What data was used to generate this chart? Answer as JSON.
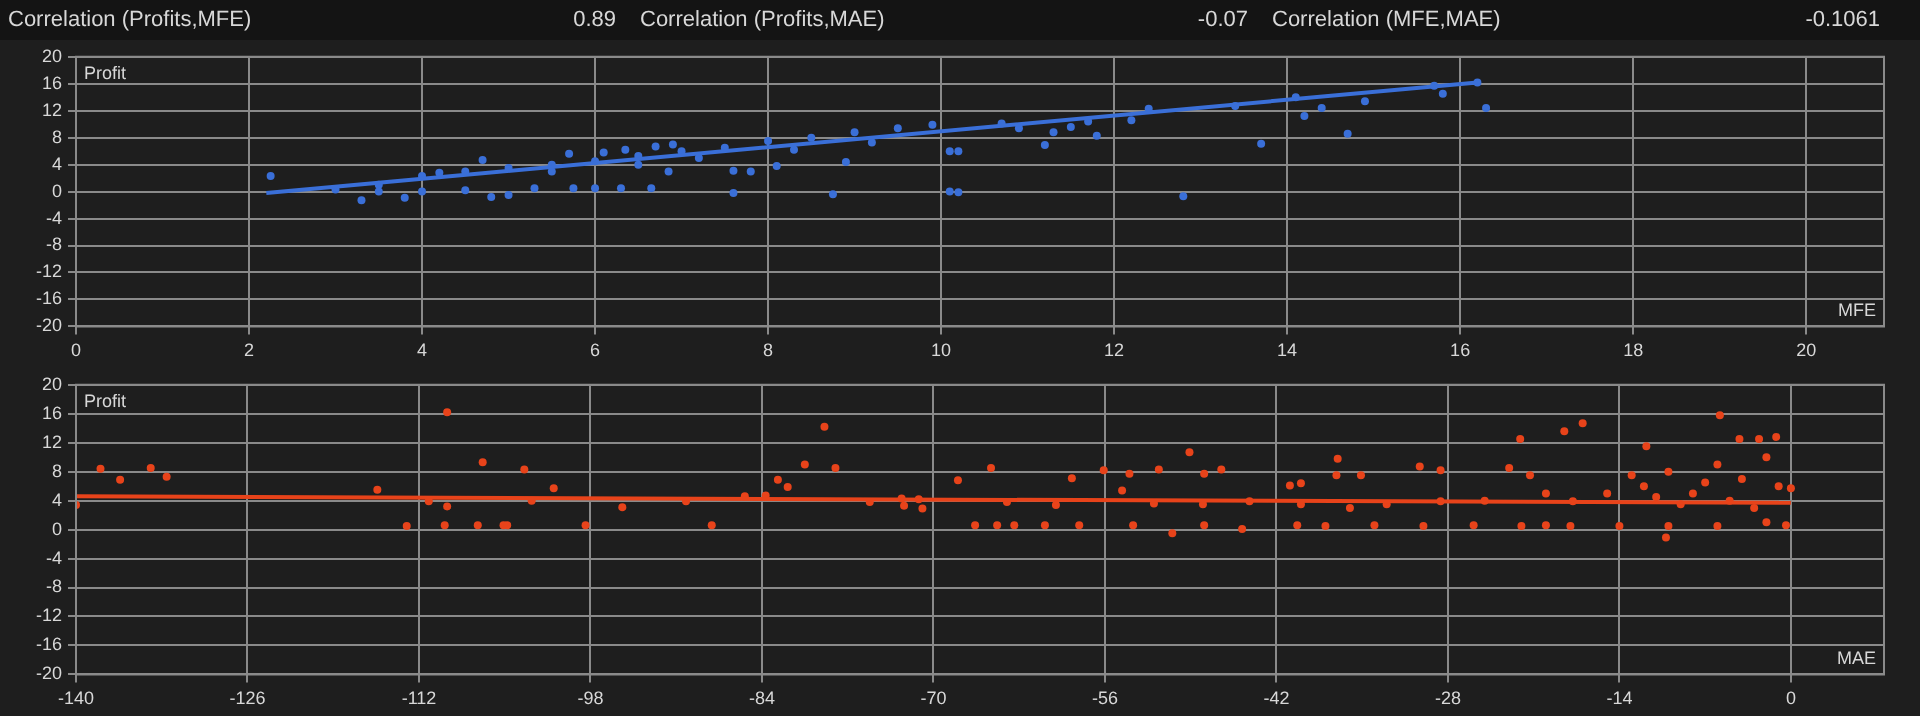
{
  "chart_data": [
    {
      "type": "scatter",
      "annotations": [
        "Correlation (Profits,MFE)",
        "0.89",
        "Correlation (Profits,MAE)",
        "-0.07",
        "Correlation (MFE,MAE)",
        "-0.1061"
      ],
      "xlabel": "MFE",
      "ylabel": "Profit",
      "xlim": [
        0,
        20.9
      ],
      "xticks": [
        0,
        2,
        4,
        6,
        8,
        10,
        12,
        14,
        16,
        18,
        20
      ],
      "ylim": [
        -20,
        20
      ],
      "yticks": [
        -20,
        -16,
        -12,
        -8,
        -4,
        0,
        4,
        8,
        12,
        16,
        20
      ],
      "grid": true,
      "series": [
        {
          "color": "#3a6fd8",
          "marker": "circle",
          "x": [
            2.25,
            3.3,
            3.0,
            3.8,
            4.8,
            5.0,
            4.7,
            5.3,
            5.75,
            6.0,
            6.3,
            6.65,
            5.7,
            6.1,
            6.35,
            6.7,
            6.9,
            7.6,
            7.6,
            7.8,
            8.1,
            8.75,
            8.9,
            9.0,
            9.5,
            9.9,
            10.1,
            10.1,
            6.85,
            3.5,
            4.0,
            4.2,
            4.5,
            5.0,
            5.5,
            6.0,
            6.5,
            7.0,
            7.5,
            8.0,
            8.5,
            4.0,
            4.5,
            3.5,
            5.5,
            6.5,
            7.2,
            8.3,
            9.2,
            10.2,
            10.2,
            10.7,
            10.9,
            11.2,
            11.3,
            11.5,
            11.7,
            11.8,
            12.2,
            12.4,
            12.8,
            13.4,
            13.7,
            14.1,
            14.2,
            14.4,
            14.7,
            14.9,
            15.7,
            15.8,
            16.2,
            16.3
          ],
          "values": [
            2.3,
            -1.3,
            0.3,
            -0.9,
            -0.8,
            -0.5,
            4.7,
            0.5,
            0.5,
            0.5,
            0.5,
            0.5,
            5.6,
            5.8,
            6.2,
            6.7,
            7,
            -0.2,
            3.1,
            3,
            3.8,
            -0.4,
            4.4,
            8.8,
            9.4,
            9.9,
            6,
            0,
            3,
            1,
            2.3,
            2.8,
            3,
            3.5,
            4,
            4.5,
            5.3,
            6,
            6.5,
            7.5,
            8,
            0,
            0.2,
            0,
            3,
            4,
            5,
            6.2,
            7.3,
            6,
            -0.1,
            10.1,
            9.4,
            6.9,
            8.8,
            9.6,
            10.4,
            8.3,
            10.6,
            12.3,
            -0.7,
            12.7,
            7.1,
            14,
            11.2,
            12.4,
            8.6,
            13.4,
            15.7,
            14.5,
            16.2,
            12.4
          ]
        },
        {
          "type": "line",
          "color": "#3a6fd8",
          "marker": "none",
          "x": [
            2.2,
            16.2
          ],
          "values": [
            -0.2,
            16.2
          ]
        }
      ]
    },
    {
      "type": "scatter",
      "xlabel": "MAE",
      "ylabel": "Profit",
      "xlim": [
        -140,
        7.6
      ],
      "xticks": [
        -140,
        -126,
        -112,
        -98,
        -84,
        -70,
        -56,
        -42,
        -28,
        -14,
        0
      ],
      "ylim": [
        -20,
        20
      ],
      "yticks": [
        -20,
        -16,
        -12,
        -8,
        -4,
        0,
        4,
        8,
        12,
        16,
        20
      ],
      "grid": true,
      "series": [
        {
          "color": "#e8431a",
          "marker": "circle",
          "x": [
            -140,
            -138,
            -136.4,
            -133.9,
            -132.6,
            -115.4,
            -113,
            -111.2,
            -109.7,
            -109.7,
            -109.9,
            -107.2,
            -106.8,
            -105.1,
            -104.8,
            -103.4,
            -102.8,
            -101,
            -98.4,
            -95.4,
            -90.2,
            -88.1,
            -85.4,
            -83.7,
            -82.7,
            -81.9,
            -80.5,
            -78.9,
            -78,
            -75.2,
            -72.6,
            -72.4,
            -71.2,
            -70.9,
            -68,
            -65.3,
            -66.6,
            -64.8,
            -63.4,
            -60.9,
            -58.7,
            -58.1,
            -56.1,
            -54.6,
            -54,
            -53.7,
            -51.6,
            -50.5,
            -49.1,
            -47.9,
            -47.9,
            -46.5,
            -44.8,
            -44.2,
            -40.9,
            -40,
            -40.3,
            -37,
            -37.1,
            -35.1,
            -34,
            -30.3,
            -28.6,
            -28.6,
            -25.9,
            -22.1,
            -21.3,
            -20,
            -18.5,
            -17,
            -17.8,
            -11.8,
            -10.2,
            -5.8,
            -4.2,
            -2.6,
            -1.2,
            0,
            -0.4,
            -12,
            -10,
            -8,
            -6,
            -4,
            -2,
            -1,
            -3,
            -5,
            -7,
            -9,
            -11,
            -13,
            -15,
            -2,
            -6,
            -10,
            -14,
            -18,
            -22,
            -30,
            -38,
            -25,
            -23,
            -20,
            -33,
            -36,
            -40,
            -48,
            -52,
            -60,
            -64
          ],
          "values": [
            3.4,
            8.4,
            6.9,
            8.5,
            7.3,
            5.5,
            0.5,
            3.9,
            16.2,
            3.2,
            0.6,
            0.6,
            9.3,
            0.6,
            0.6,
            8.3,
            4,
            5.7,
            0.6,
            3.1,
            3.9,
            0.6,
            4.6,
            4.7,
            6.9,
            5.9,
            9,
            14.2,
            8.5,
            3.8,
            4.3,
            3.3,
            4.2,
            2.9,
            6.8,
            8.5,
            0.6,
            0.6,
            0.6,
            0.6,
            7.1,
            0.6,
            8.2,
            5.4,
            7.7,
            0.6,
            8.3,
            -0.5,
            10.7,
            7.7,
            0.6,
            8.3,
            0.1,
            3.9,
            6.1,
            6.4,
            0.6,
            9.8,
            7.5,
            7.5,
            0.6,
            8.7,
            8.2,
            3.9,
            0.6,
            12.5,
            7.5,
            0.6,
            13.6,
            14.7,
            3.9,
            11.5,
            -1.1,
            15.8,
            12.5,
            12.5,
            12.8,
            5.7,
            0.6,
            6,
            8,
            5,
            9,
            7,
            10,
            6,
            3,
            4,
            6.5,
            3.5,
            4.5,
            7.5,
            5,
            1,
            0.5,
            0.5,
            0.5,
            0.5,
            0.5,
            0.5,
            0.5,
            4,
            8.5,
            5,
            3.5,
            3,
            3.5,
            3.5,
            3.6,
            3.4,
            3.8
          ]
        },
        {
          "type": "line",
          "color": "#e8431a",
          "marker": "none",
          "x": [
            -140,
            0
          ],
          "values": [
            4.6,
            3.7
          ]
        }
      ]
    }
  ]
}
